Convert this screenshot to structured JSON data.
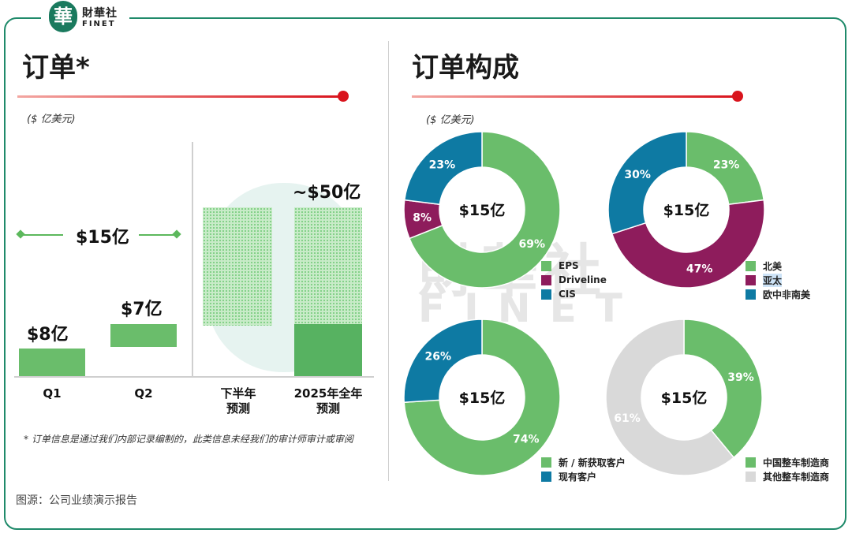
{
  "brand": {
    "logo_char": "華",
    "cn": "財華社",
    "en": "FINET"
  },
  "left_panel": {
    "title": "订单*",
    "unit": "($ 亿美元)",
    "footnote": "* 订单信息是通过我们内部记录编制的，此类信息未经我们的审计师审计或审阅",
    "source": "图源：公司业绩演示报告"
  },
  "right_panel": {
    "title": "订单构成",
    "unit": "($ 亿美元)"
  },
  "colors": {
    "green": "#6abd6b",
    "purple": "#8e1c5c",
    "blue": "#0e7aa3",
    "grey": "#d9d9d9",
    "red": "#d9141d"
  },
  "chart_data": [
    {
      "type": "bar",
      "title": "订单*",
      "unit": "($ 亿美元)",
      "categories": [
        "Q1",
        "Q2",
        "下半年预测",
        "2025年全年预测"
      ],
      "category_lines": [
        [
          "Q1"
        ],
        [
          "Q2"
        ],
        [
          "下半年",
          "预测"
        ],
        [
          "2025年全年",
          "预测"
        ]
      ],
      "values": [
        8,
        7,
        35,
        50
      ],
      "value_labels": [
        "$8亿",
        "$7亿",
        "",
        "~$50亿"
      ],
      "forecast": [
        false,
        false,
        true,
        true
      ],
      "reference_label": "$15亿",
      "reference_value": 15
    },
    {
      "type": "pie",
      "style": "donut",
      "center_label": "$15亿",
      "slices": [
        {
          "label": "EPS",
          "value": 69,
          "text": "69%",
          "color": "#6abd6b"
        },
        {
          "label": "Driveline",
          "value": 8,
          "text": "8%",
          "color": "#8e1c5c"
        },
        {
          "label": "CIS",
          "value": 23,
          "text": "23%",
          "color": "#0e7aa3"
        }
      ]
    },
    {
      "type": "pie",
      "style": "donut",
      "center_label": "$15亿",
      "slices": [
        {
          "label": "北美",
          "value": 23,
          "text": "23%",
          "color": "#6abd6b"
        },
        {
          "label": "亚太",
          "value": 47,
          "text": "47%",
          "color": "#8e1c5c"
        },
        {
          "label": "欧中非南美",
          "value": 30,
          "text": "30%",
          "color": "#0e7aa3"
        }
      ]
    },
    {
      "type": "pie",
      "style": "donut",
      "center_label": "$15亿",
      "slices": [
        {
          "label": "新 / 新获取客户",
          "value": 74,
          "text": "74%",
          "color": "#6abd6b"
        },
        {
          "label": "现有客户",
          "value": 26,
          "text": "26%",
          "color": "#0e7aa3"
        }
      ]
    },
    {
      "type": "pie",
      "style": "donut",
      "center_label": "$15亿",
      "slices": [
        {
          "label": "中国整车制造商",
          "value": 39,
          "text": "39%",
          "color": "#6abd6b"
        },
        {
          "label": "其他整车制造商",
          "value": 61,
          "text": "61%",
          "color": "#d9d9d9"
        }
      ]
    }
  ]
}
